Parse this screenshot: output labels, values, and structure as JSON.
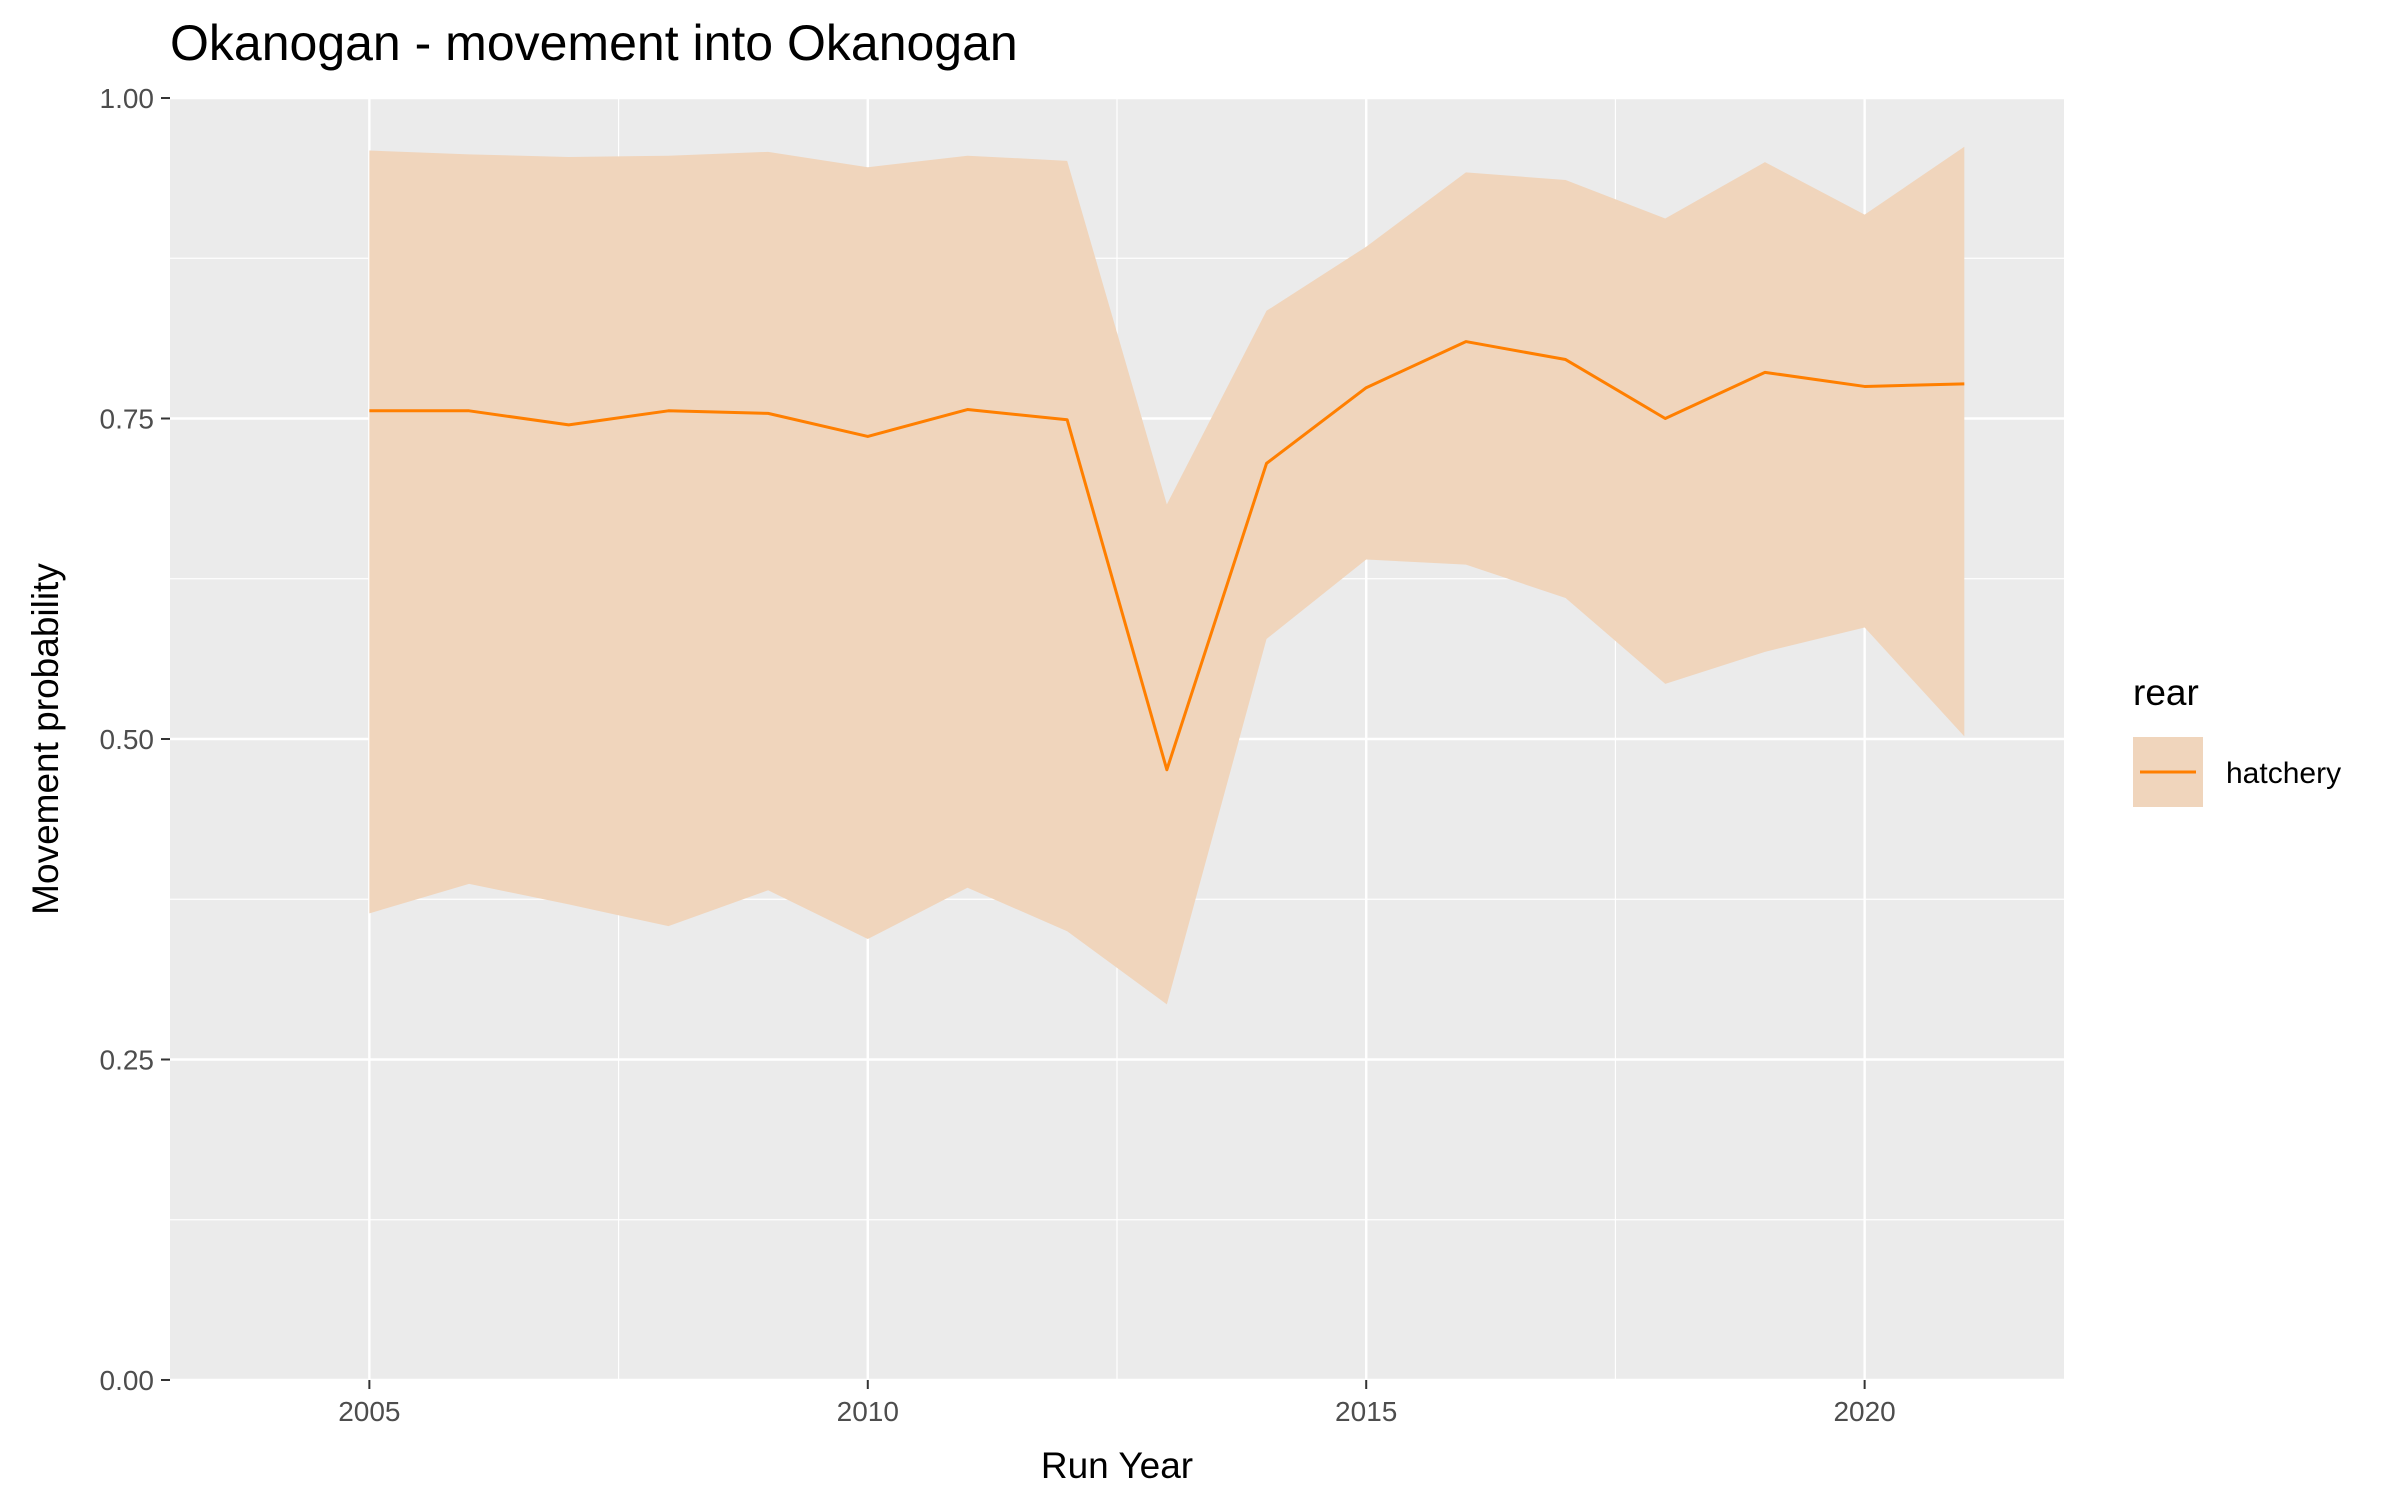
{
  "chart_data": {
    "type": "line",
    "title": "Okanogan - movement into Okanogan",
    "xlabel": "Run Year",
    "ylabel": "Movement probability",
    "xlim": [
      2003,
      2022
    ],
    "ylim": [
      0,
      1
    ],
    "x_ticks": [
      2005,
      2010,
      2015,
      2020
    ],
    "x_tick_labels": [
      "2005",
      "2010",
      "2015",
      "2020"
    ],
    "y_ticks": [
      0,
      0.25,
      0.5,
      0.75,
      1
    ],
    "y_tick_labels": [
      "0.00",
      "0.25",
      "0.50",
      "0.75",
      "1.00"
    ],
    "grid": true,
    "legend": {
      "title": "rear",
      "position": "right"
    },
    "series": [
      {
        "name": "hatchery",
        "color": "#ff7f00",
        "ribbon_color": "#f0d5bc",
        "x": [
          2005,
          2006,
          2007,
          2008,
          2009,
          2010,
          2011,
          2012,
          2013,
          2014,
          2015,
          2016,
          2017,
          2018,
          2019,
          2020,
          2021
        ],
        "y": [
          0.756,
          0.756,
          0.745,
          0.756,
          0.754,
          0.736,
          0.757,
          0.749,
          0.476,
          0.715,
          0.774,
          0.81,
          0.796,
          0.75,
          0.786,
          0.775,
          0.777
        ],
        "lower": [
          0.364,
          0.387,
          0.371,
          0.354,
          0.382,
          0.344,
          0.384,
          0.35,
          0.293,
          0.578,
          0.64,
          0.636,
          0.61,
          0.543,
          0.568,
          0.587,
          0.502
        ],
        "upper": [
          0.959,
          0.956,
          0.954,
          0.955,
          0.958,
          0.946,
          0.955,
          0.951,
          0.683,
          0.834,
          0.884,
          0.942,
          0.936,
          0.906,
          0.95,
          0.909,
          0.962
        ]
      }
    ]
  }
}
